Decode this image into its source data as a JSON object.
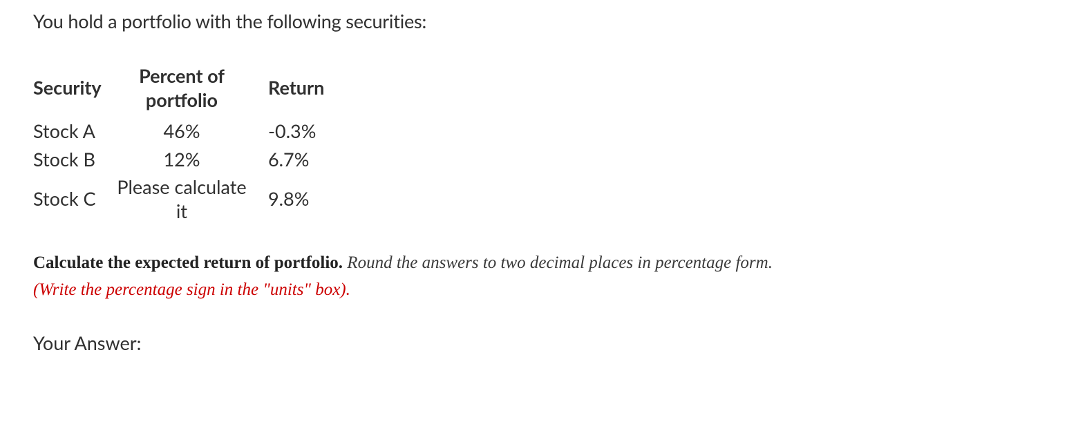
{
  "intro_text": "You hold a portfolio with the following securities:",
  "table": {
    "headers": {
      "security": "Security",
      "percent": "Percent of portfolio",
      "return": "Return"
    },
    "rows": [
      {
        "security": "Stock A",
        "percent": "46%",
        "return": "-0.3%"
      },
      {
        "security": "Stock B",
        "percent": "12%",
        "return": "6.7%"
      },
      {
        "security": "Stock C",
        "percent": "Please calculate it",
        "return": "9.8%"
      }
    ]
  },
  "instructions": {
    "bold_part": "Calculate the expected return of portfolio.",
    "italic_part": " Round the answers to two decimal places in percentage form. ",
    "red_part": "(Write the percentage sign in the \"units\" box)."
  },
  "answer_label": "Your Answer:"
}
